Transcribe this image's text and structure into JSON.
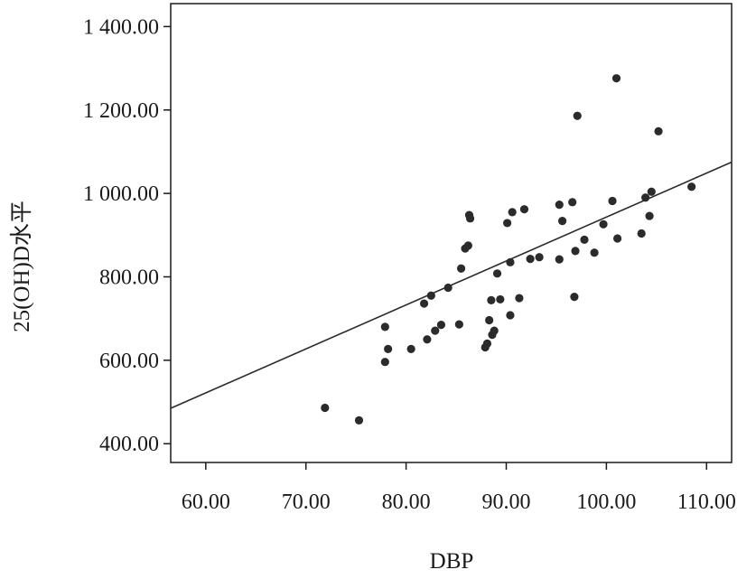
{
  "chart_data": {
    "type": "scatter",
    "xlabel": "DBP",
    "ylabel": "25(OH)D水平",
    "xlim": [
      56.5,
      112.5
    ],
    "ylim": [
      355,
      1455
    ],
    "x_ticks": [
      60,
      70,
      80,
      90,
      100,
      110
    ],
    "y_ticks": [
      400,
      600,
      800,
      1000,
      1200,
      1400
    ],
    "x_tick_labels": [
      "60.00",
      "70.00",
      "80.00",
      "90.00",
      "100.00",
      "110.00"
    ],
    "y_tick_labels": [
      "400.00",
      "600.00",
      "800.00",
      "1 000.00",
      "1 200.00",
      "1 400.00"
    ],
    "grid": false,
    "fit_line": {
      "x": [
        56.5,
        112.5
      ],
      "y": [
        485,
        1075
      ]
    },
    "points": {
      "x": [
        71.9,
        75.3,
        77.9,
        77.9,
        78.2,
        80.5,
        81.8,
        82.1,
        82.5,
        82.9,
        83.5,
        84.2,
        85.3,
        85.5,
        85.9,
        86.2,
        86.3,
        86.4,
        87.9,
        88.1,
        88.3,
        88.5,
        88.6,
        88.8,
        89.1,
        89.4,
        90.1,
        90.4,
        90.4,
        90.6,
        91.3,
        91.8,
        92.4,
        93.3,
        95.3,
        95.3,
        95.6,
        96.6,
        96.8,
        96.9,
        97.1,
        97.8,
        98.8,
        99.7,
        100.6,
        101.1,
        101.0,
        103.5,
        103.9,
        104.3,
        104.5,
        105.2,
        108.5
      ],
      "y": [
        486,
        456,
        680,
        596,
        627,
        627,
        736,
        650,
        755,
        671,
        685,
        774,
        686,
        820,
        868,
        875,
        948,
        940,
        631,
        640,
        696,
        744,
        661,
        671,
        808,
        746,
        929,
        708,
        835,
        955,
        749,
        962,
        843,
        847,
        842,
        973,
        934,
        979,
        752,
        862,
        1186,
        889,
        858,
        926,
        982,
        892,
        1276,
        904,
        990,
        946,
        1004,
        1149,
        1016
      ]
    }
  }
}
